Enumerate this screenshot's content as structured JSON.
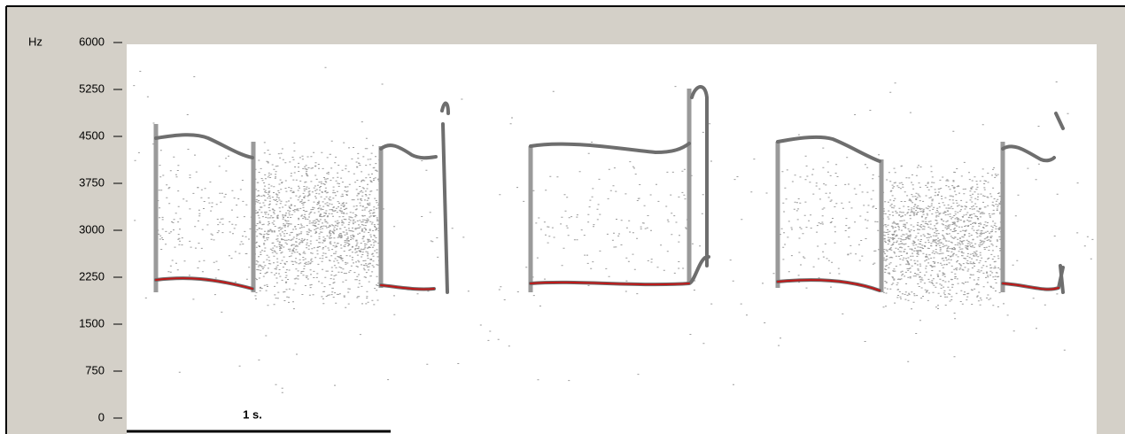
{
  "axis": {
    "label": "Hz",
    "ylim": [
      0,
      6000
    ],
    "yticks": [
      0,
      750,
      1500,
      2250,
      3000,
      3750,
      4500,
      5250,
      6000
    ]
  },
  "scale_bar": {
    "label": "1 s."
  }
}
